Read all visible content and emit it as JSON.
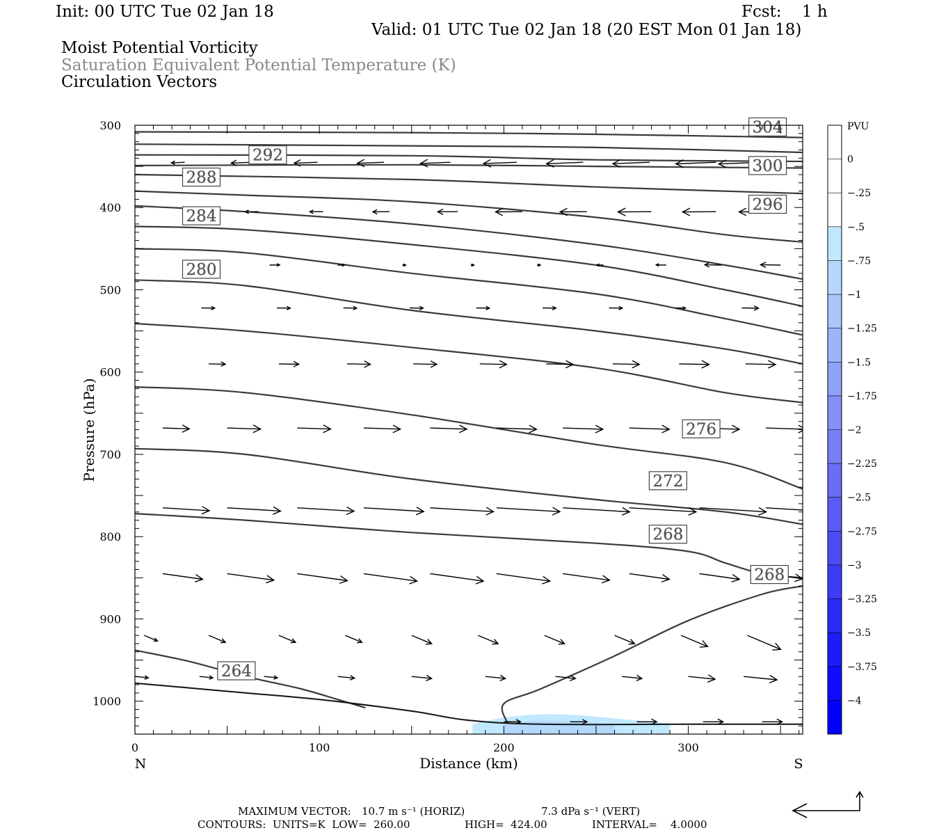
{
  "header": {
    "init": "Init: 00 UTC Tue 02 Jan 18",
    "fcst": "Fcst:    1 h",
    "valid": "Valid: 01 UTC Tue 02 Jan 18 (20 EST Mon 01 Jan 18)",
    "line1": "Moist Potential Vorticity",
    "line2": "Saturation Equivalent Potential Temperature (K)",
    "line3": "Circulation Vectors"
  },
  "footer": {
    "max_vector_label": "MAXIMUM VECTOR:",
    "horiz": "10.7 m s⁻¹ (HORIZ)",
    "vert": "7.3 dPa s⁻¹ (VERT)",
    "contours": "CONTOURS:  UNITS=K  LOW=  260.00",
    "high": "HIGH=  424.00",
    "interval": "INTERVAL=    4.0000"
  },
  "chart_data": {
    "type": "cross-section contour",
    "xlabel": "Distance (km)",
    "ylabel": "Pressure (hPa)",
    "xlim": [
      0,
      362
    ],
    "ylim": [
      1040,
      300
    ],
    "x_ticks": [
      0,
      100,
      200,
      300
    ],
    "y_ticks": [
      300,
      400,
      500,
      600,
      700,
      800,
      900,
      1000
    ],
    "x_end_labels": {
      "left": "N",
      "right": "S"
    },
    "colorbar": {
      "unit": "PVU",
      "labels": [
        "0",
        "-.25",
        "-.5",
        "-.75",
        "-1",
        "-1.25",
        "-1.5",
        "-1.75",
        "-2",
        "-2.25",
        "-2.5",
        "-2.75",
        "-3",
        "-3.25",
        "-3.5",
        "-3.75",
        "-4"
      ],
      "colors": [
        "#ffffff",
        "#ffffff",
        "#c0e8ff",
        "#b4d8fc",
        "#a8c6fa",
        "#9cb4f8",
        "#90a2f6",
        "#8490f4",
        "#787ef4",
        "#6c6cf4",
        "#5c5cf4",
        "#4c4cf4",
        "#3c3cf6",
        "#2c2cf8",
        "#1c1cfa",
        "#0e0efc",
        "#0000ff"
      ]
    },
    "mpv_shading": [
      {
        "level": "-.25",
        "color": "#c0e8ff",
        "points": [
          [
            183,
            1028
          ],
          [
            200,
            1020
          ],
          [
            220,
            1016
          ],
          [
            240,
            1017
          ],
          [
            260,
            1021
          ],
          [
            290,
            1027
          ]
        ]
      },
      {
        "level": "-.5",
        "color": "#b4d8fc",
        "points": [
          [
            200,
            1028
          ],
          [
            220,
            1024
          ],
          [
            240,
            1025
          ],
          [
            260,
            1028
          ]
        ]
      }
    ],
    "ground_pressure": [
      [
        0,
        978
      ],
      [
        50,
        988
      ],
      [
        100,
        998
      ],
      [
        150,
        1012
      ],
      [
        180,
        1023
      ],
      [
        220,
        1028
      ],
      [
        300,
        1028
      ],
      [
        362,
        1028
      ]
    ],
    "contours": [
      {
        "value": 264,
        "label": "264",
        "points": [
          [
            0,
            938
          ],
          [
            30,
            952
          ],
          [
            60,
            970
          ],
          [
            90,
            985
          ],
          [
            110,
            998
          ],
          [
            125,
            1008
          ]
        ],
        "label_at": [
          55,
          963
        ]
      },
      {
        "value": 268,
        "label": "268",
        "points": [
          [
            0,
            772
          ],
          [
            60,
            780
          ],
          [
            150,
            795
          ],
          [
            250,
            808
          ],
          [
            300,
            818
          ],
          [
            320,
            832
          ],
          [
            340,
            845
          ],
          [
            362,
            850
          ]
        ],
        "label_at": [
          289,
          797
        ]
      },
      {
        "value": 268,
        "label": "268",
        "points": [
          [
            202,
            1027
          ],
          [
            200,
            1003
          ],
          [
            220,
            985
          ],
          [
            260,
            945
          ],
          [
            300,
            902
          ],
          [
            340,
            870
          ],
          [
            362,
            860
          ]
        ],
        "label_at": [
          344,
          846
        ]
      },
      {
        "value": 272,
        "label": "272",
        "points": [
          [
            0,
            693
          ],
          [
            60,
            700
          ],
          [
            150,
            730
          ],
          [
            250,
            755
          ],
          [
            320,
            770
          ],
          [
            362,
            785
          ]
        ],
        "label_at": [
          289,
          732
        ]
      },
      {
        "value": 276,
        "label": "276",
        "points": [
          [
            0,
            618
          ],
          [
            60,
            625
          ],
          [
            150,
            652
          ],
          [
            250,
            688
          ],
          [
            320,
            710
          ],
          [
            362,
            742
          ]
        ],
        "label_at": [
          307,
          669
        ]
      },
      {
        "value": 280,
        "label": "280",
        "points": [
          [
            0,
            541
          ],
          [
            60,
            550
          ],
          [
            150,
            570
          ],
          [
            250,
            595
          ],
          [
            320,
            625
          ],
          [
            362,
            637
          ]
        ],
        "label_at": [
          36,
          475
        ]
      },
      {
        "value": 284,
        "label": "284",
        "points": [
          [
            0,
            488
          ],
          [
            60,
            495
          ],
          [
            150,
            525
          ],
          [
            250,
            550
          ],
          [
            320,
            572
          ],
          [
            362,
            590
          ]
        ],
        "label_at": [
          36,
          410
        ]
      },
      {
        "value": 288,
        "label": "288",
        "points": [
          [
            0,
            450
          ],
          [
            60,
            455
          ],
          [
            150,
            480
          ],
          [
            250,
            505
          ],
          [
            320,
            535
          ],
          [
            362,
            555
          ]
        ],
        "label_at": [
          36,
          363
        ]
      },
      {
        "value": 292,
        "label": "292",
        "points": [
          [
            0,
            423
          ],
          [
            60,
            427
          ],
          [
            150,
            445
          ],
          [
            250,
            470
          ],
          [
            320,
            500
          ],
          [
            362,
            520
          ]
        ],
        "label_at": [
          72,
          336
        ]
      },
      {
        "value": 296,
        "label": "296",
        "points": [
          [
            0,
            398
          ],
          [
            60,
            405
          ],
          [
            150,
            420
          ],
          [
            250,
            445
          ],
          [
            320,
            470
          ],
          [
            362,
            487
          ]
        ],
        "label_at": [
          343,
          396
        ]
      },
      {
        "value": 300,
        "label": "300",
        "points": [
          [
            0,
            380
          ],
          [
            60,
            385
          ],
          [
            150,
            393
          ],
          [
            250,
            412
          ],
          [
            320,
            433
          ],
          [
            362,
            442
          ]
        ],
        "label_at": [
          343,
          349
        ]
      },
      {
        "value": 304,
        "label": "304",
        "points": [
          [
            0,
            360
          ],
          [
            150,
            366
          ],
          [
            250,
            375
          ],
          [
            362,
            383
          ]
        ],
        "label_at": [
          343,
          302
        ]
      },
      {
        "value": 308,
        "label": "",
        "points": [
          [
            0,
            349
          ],
          [
            150,
            348
          ],
          [
            250,
            350
          ],
          [
            362,
            352
          ]
        ],
        "label_at": null
      },
      {
        "value": 312,
        "label": "",
        "points": [
          [
            0,
            336
          ],
          [
            150,
            337
          ],
          [
            250,
            342
          ],
          [
            362,
            344
          ]
        ],
        "label_at": null
      },
      {
        "value": 316,
        "label": "",
        "points": [
          [
            0,
            323
          ],
          [
            150,
            325
          ],
          [
            250,
            327
          ],
          [
            362,
            333
          ]
        ],
        "label_at": null
      },
      {
        "value": 320,
        "label": "",
        "points": [
          [
            0,
            308
          ],
          [
            150,
            309
          ],
          [
            250,
            311
          ],
          [
            362,
            315
          ]
        ],
        "label_at": null
      }
    ],
    "vector_rows": [
      {
        "p": 345,
        "vectors": [
          [
            27,
            -0.4
          ],
          [
            63,
            -0.6
          ],
          [
            99,
            -0.7
          ],
          [
            135,
            -0.8
          ],
          [
            171,
            -0.9
          ],
          [
            207,
            -1.0
          ],
          [
            243,
            -1.1
          ],
          [
            279,
            -1.1
          ],
          [
            315,
            -1.2
          ],
          [
            340,
            -1.3
          ]
        ]
      },
      {
        "p": 405,
        "vectors": [
          [
            35,
            -0.3
          ],
          [
            67,
            -0.4
          ],
          [
            102,
            -0.4
          ],
          [
            138,
            -0.5
          ],
          [
            175,
            -0.6
          ],
          [
            210,
            -0.8
          ],
          [
            245,
            -0.8
          ],
          [
            280,
            -1.0
          ],
          [
            315,
            -1.0
          ],
          [
            342,
            -0.8
          ]
        ]
      },
      {
        "p": 470,
        "vectors": [
          [
            30,
            0.3
          ],
          [
            73,
            0.3
          ],
          [
            110,
            0.2
          ],
          [
            145,
            0.1
          ],
          [
            182,
            0.1
          ],
          [
            218,
            0.1
          ],
          [
            254,
            -0.2
          ],
          [
            288,
            -0.3
          ],
          [
            318,
            -0.5
          ],
          [
            350,
            -0.6
          ]
        ]
      },
      {
        "p": 522,
        "vectors": [
          [
            36,
            0.4
          ],
          [
            77,
            0.4
          ],
          [
            113,
            0.4
          ],
          [
            149,
            0.4
          ],
          [
            185,
            0.4
          ],
          [
            221,
            0.4
          ],
          [
            257,
            0.4
          ],
          [
            293,
            0.3
          ],
          [
            329,
            0.5
          ]
        ]
      },
      {
        "p": 590,
        "vectors": [
          [
            40,
            0.5
          ],
          [
            78,
            0.6
          ],
          [
            115,
            0.7
          ],
          [
            151,
            0.7
          ],
          [
            187,
            0.8
          ],
          [
            223,
            0.8
          ],
          [
            259,
            0.8
          ],
          [
            295,
            0.9
          ],
          [
            331,
            0.9
          ]
        ]
      },
      {
        "p": 668,
        "vectors": [
          [
            15,
            0.8
          ],
          [
            50,
            1.0
          ],
          [
            88,
            1.0
          ],
          [
            124,
            1.1
          ],
          [
            160,
            1.1
          ],
          [
            196,
            1.2
          ],
          [
            232,
            1.2
          ],
          [
            268,
            1.2
          ],
          [
            306,
            1.2
          ],
          [
            342,
            1.2
          ]
        ]
      },
      {
        "p": 765,
        "vectors": [
          [
            15,
            1.4
          ],
          [
            50,
            1.6
          ],
          [
            88,
            1.7
          ],
          [
            124,
            1.8
          ],
          [
            160,
            1.9
          ],
          [
            196,
            1.9
          ],
          [
            232,
            2.0
          ],
          [
            268,
            2.0
          ],
          [
            306,
            2.0
          ],
          [
            342,
            2.0
          ]
        ]
      },
      {
        "p": 845,
        "vectors": [
          [
            15,
            1.2
          ],
          [
            50,
            1.4
          ],
          [
            88,
            1.5
          ],
          [
            124,
            1.6
          ],
          [
            160,
            1.6
          ],
          [
            196,
            1.6
          ],
          [
            232,
            1.4
          ],
          [
            268,
            1.2
          ],
          [
            306,
            1.2
          ],
          [
            342,
            1.1
          ]
        ]
      },
      {
        "p": 920,
        "vectors": [
          [
            5,
            0.4
          ],
          [
            40,
            0.5
          ],
          [
            78,
            0.5
          ],
          [
            114,
            0.5
          ],
          [
            150,
            0.6
          ],
          [
            186,
            0.6
          ],
          [
            222,
            0.6
          ],
          [
            260,
            0.6
          ],
          [
            296,
            0.8
          ],
          [
            332,
            1.0
          ]
        ]
      },
      {
        "p": 970,
        "vectors": [
          [
            0,
            0.4
          ],
          [
            35,
            0.4
          ],
          [
            70,
            0.4
          ],
          [
            110,
            0.5
          ],
          [
            150,
            0.6
          ],
          [
            190,
            0.6
          ],
          [
            228,
            0.6
          ],
          [
            264,
            0.6
          ],
          [
            300,
            0.8
          ],
          [
            330,
            1.0
          ]
        ]
      },
      {
        "p": 1025,
        "vectors": [
          [
            200,
            0.5
          ],
          [
            236,
            0.5
          ],
          [
            272,
            0.6
          ],
          [
            308,
            0.6
          ],
          [
            340,
            0.6
          ]
        ]
      }
    ],
    "vector_tilt": [
      {
        "p": 345,
        "dy": 0.04
      },
      {
        "p": 405,
        "dy": 0.01
      },
      {
        "p": 470,
        "dy": -0.02
      },
      {
        "p": 522,
        "dy": 0.02
      },
      {
        "p": 590,
        "dy": 0.02
      },
      {
        "p": 668,
        "dy": 0.03
      },
      {
        "p": 765,
        "dy": 0.06
      },
      {
        "p": 845,
        "dy": 0.14
      },
      {
        "p": 920,
        "dy": 0.3
      },
      {
        "p": 970,
        "dy": 0.1
      },
      {
        "p": 1025,
        "dy": 0.0
      }
    ]
  }
}
